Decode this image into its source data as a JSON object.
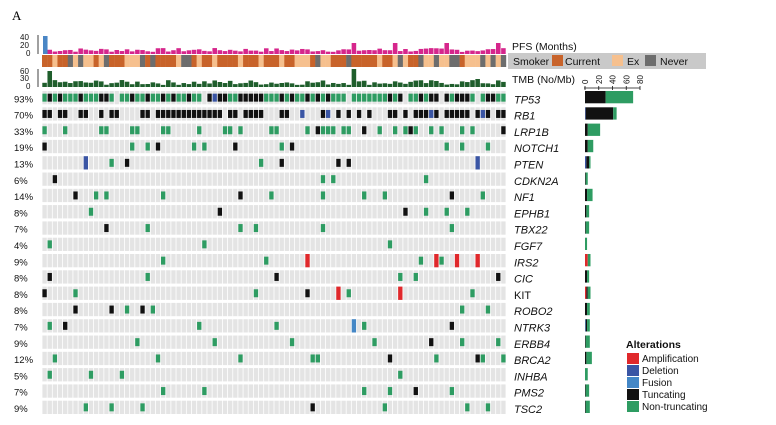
{
  "panel_label": "A",
  "tracks": {
    "pfs_label": "PFS (Months)",
    "pfs_ticks": [
      "40",
      "20",
      "0"
    ],
    "tmb_label": "TMB (No/Mb)",
    "tmb_ticks": [
      "60",
      "30",
      "0"
    ],
    "smoker_label": "Smoker",
    "smoker_categories": [
      {
        "label": "Current",
        "color": "#c8632a"
      },
      {
        "label": "Ex",
        "color": "#f6c08e"
      },
      {
        "label": "Never",
        "color": "#6d6d6d"
      }
    ]
  },
  "bar_axis_ticks": [
    "0",
    "20",
    "40",
    "60",
    "80"
  ],
  "legend": {
    "title": "Alterations",
    "items": [
      {
        "label": "Amplification",
        "color": "#e0282b"
      },
      {
        "label": "Deletion",
        "color": "#3a55a4"
      },
      {
        "label": "Fusion",
        "color": "#4487c6"
      },
      {
        "label": "Tuncating",
        "color": "#111111"
      },
      {
        "label": "Non-truncating",
        "color": "#2e9c62"
      }
    ]
  },
  "chart_data": {
    "type": "heatmap",
    "title": "",
    "n_samples": 90,
    "genes": [
      {
        "gene": "TP53",
        "pct": "93%",
        "italic": true,
        "truncating": 30,
        "nontrunc": 40,
        "other": 0
      },
      {
        "gene": "RB1",
        "pct": "70%",
        "italic": true,
        "truncating": 40,
        "nontrunc": 5,
        "other": 1
      },
      {
        "gene": "LRP1B",
        "pct": "33%",
        "italic": true,
        "truncating": 4,
        "nontrunc": 18,
        "other": 0
      },
      {
        "gene": "NOTCH1",
        "pct": "19%",
        "italic": true,
        "truncating": 4,
        "nontrunc": 8,
        "other": 0
      },
      {
        "gene": "PTEN",
        "pct": "13%",
        "italic": true,
        "truncating": 4,
        "nontrunc": 2,
        "other": 2
      },
      {
        "gene": "CDKN2A",
        "pct": "6%",
        "italic": true,
        "truncating": 1,
        "nontrunc": 3,
        "other": 0
      },
      {
        "gene": "NF1",
        "pct": "14%",
        "italic": true,
        "truncating": 3,
        "nontrunc": 8,
        "other": 0
      },
      {
        "gene": "EPHB1",
        "pct": "8%",
        "italic": true,
        "truncating": 2,
        "nontrunc": 4,
        "other": 0
      },
      {
        "gene": "TBX22",
        "pct": "7%",
        "italic": true,
        "truncating": 1,
        "nontrunc": 5,
        "other": 0
      },
      {
        "gene": "FGF7",
        "pct": "4%",
        "italic": true,
        "truncating": 0,
        "nontrunc": 3,
        "other": 0
      },
      {
        "gene": "IRS2",
        "pct": "9%",
        "italic": true,
        "truncating": 0,
        "nontrunc": 4,
        "other": 4
      },
      {
        "gene": "CIC",
        "pct": "8%",
        "italic": true,
        "truncating": 3,
        "nontrunc": 3,
        "other": 0
      },
      {
        "gene": "KIT",
        "pct": "8%",
        "italic": false,
        "truncating": 2,
        "nontrunc": 4,
        "other": 2
      },
      {
        "gene": "ROBO2",
        "pct": "8%",
        "italic": true,
        "truncating": 3,
        "nontrunc": 4,
        "other": 0
      },
      {
        "gene": "NTRK3",
        "pct": "7%",
        "italic": true,
        "truncating": 2,
        "nontrunc": 4,
        "other": 1
      },
      {
        "gene": "ERBB4",
        "pct": "9%",
        "italic": true,
        "truncating": 1,
        "nontrunc": 6,
        "other": 0
      },
      {
        "gene": "BRCA2",
        "pct": "12%",
        "italic": true,
        "truncating": 2,
        "nontrunc": 8,
        "other": 0
      },
      {
        "gene": "INHBA",
        "pct": "5%",
        "italic": true,
        "truncating": 0,
        "nontrunc": 4,
        "other": 0
      },
      {
        "gene": "PMS2",
        "pct": "7%",
        "italic": true,
        "truncating": 1,
        "nontrunc": 5,
        "other": 0
      },
      {
        "gene": "TSC2",
        "pct": "9%",
        "italic": true,
        "truncating": 1,
        "nontrunc": 6,
        "other": 0
      }
    ]
  }
}
